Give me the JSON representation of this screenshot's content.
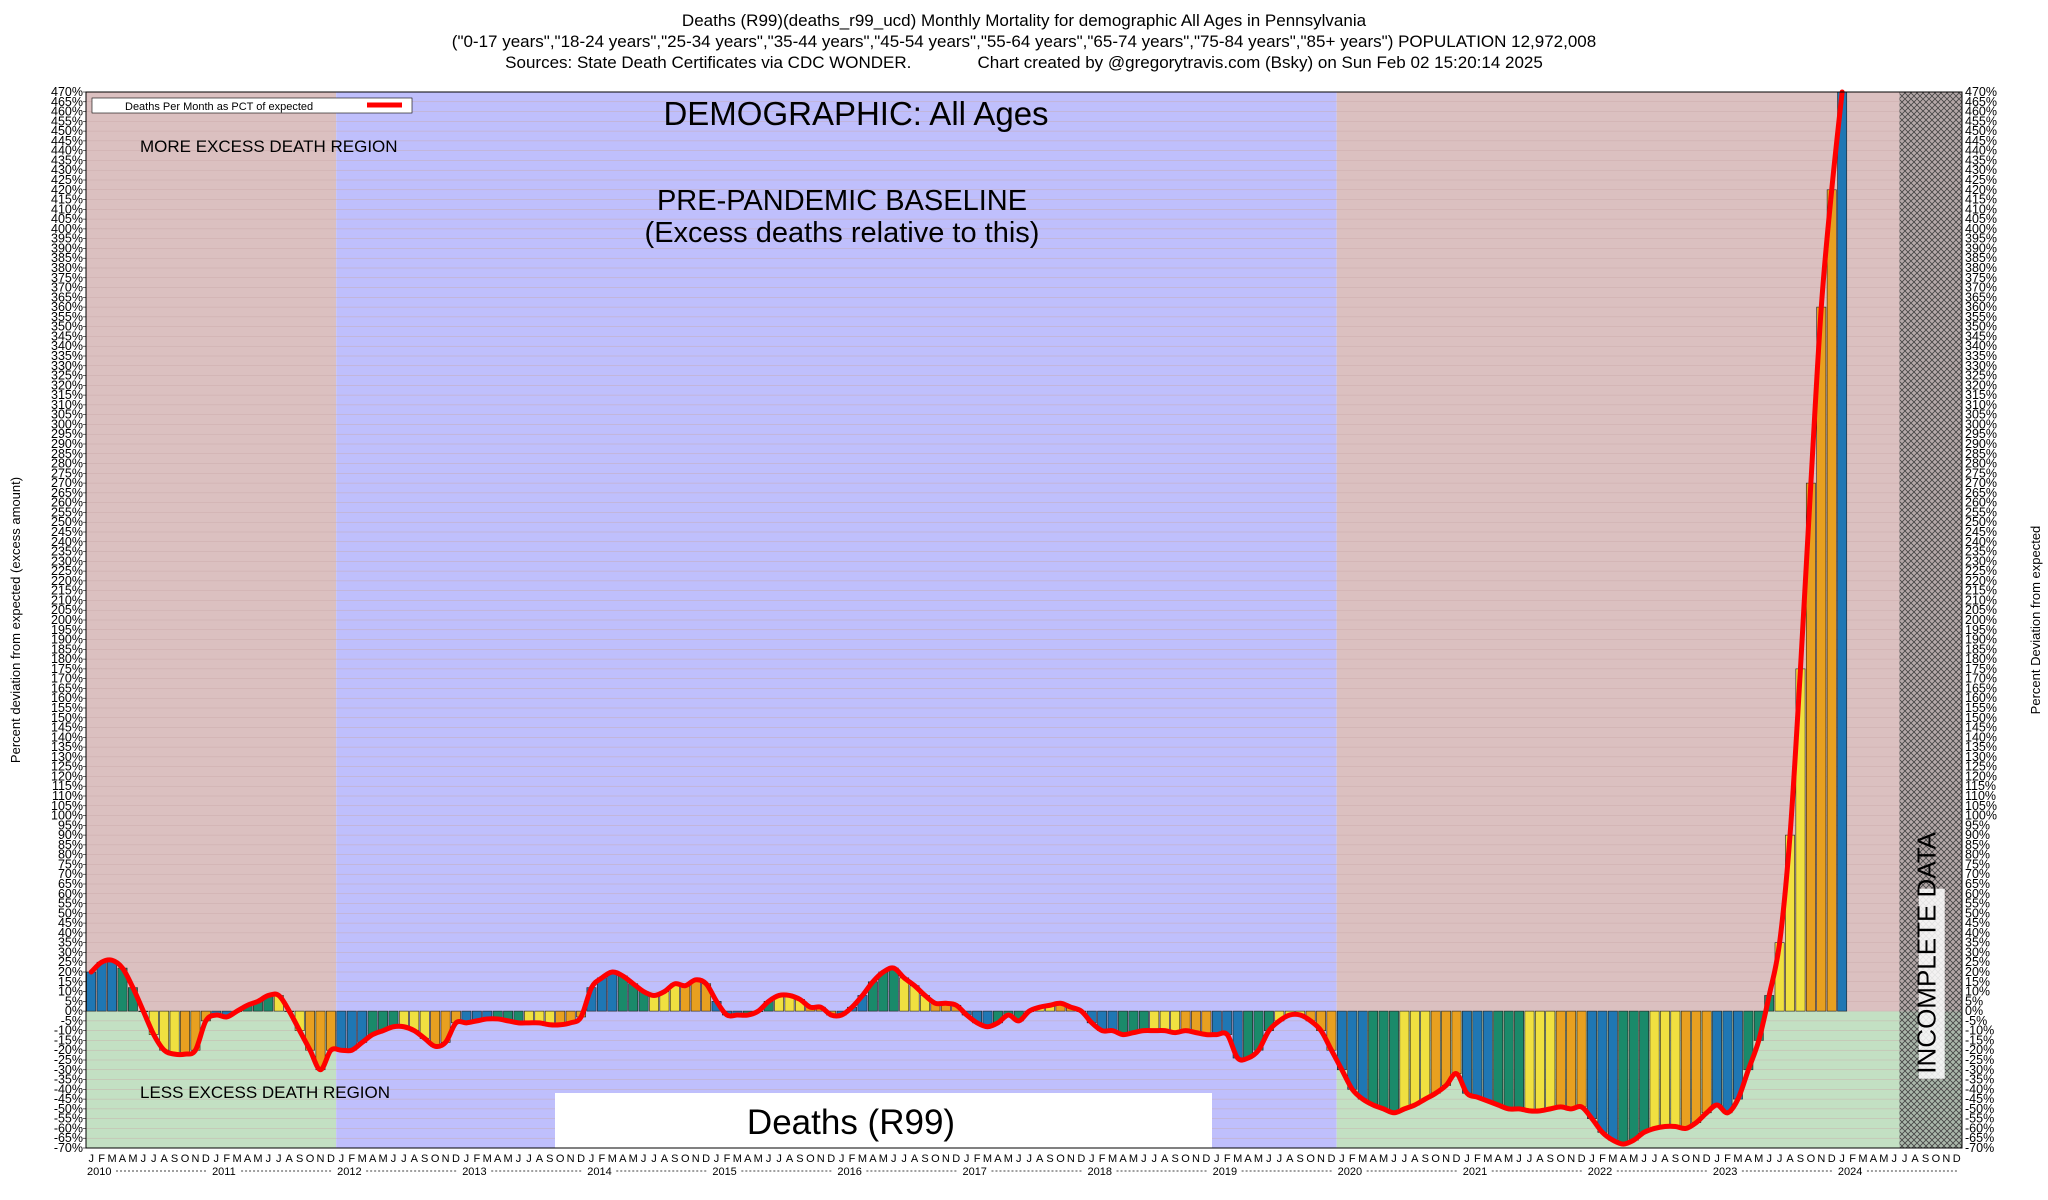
{
  "title": {
    "line1": "Deaths (R99)(deaths_r99_ucd) Monthly Mortality for demographic All Ages in Pennsylvania",
    "line2": "(\"0-17 years\",\"18-24 years\",\"25-34 years\",\"35-44 years\",\"45-54 years\",\"55-64 years\",\"65-74 years\",\"75-84 years\",\"85+ years\") POPULATION 12,972,008",
    "line3": "Sources: State Death Certificates via CDC WONDER.              Chart created by @gregorytravis.com (Bsky) on Sun Feb 02 15:20:14 2025"
  },
  "annotations": {
    "demographic": "DEMOGRAPHIC: All Ages",
    "baseline_1": "PRE-PANDEMIC BASELINE",
    "baseline_2": "(Excess deaths relative to this)",
    "more_excess": "MORE EXCESS DEATH REGION",
    "less_excess": "LESS EXCESS DEATH REGION",
    "cause_box": "Deaths (R99)",
    "incomplete": "INCOMPLETE DATA",
    "legend": "Deaths Per Month as PCT of expected"
  },
  "colors": {
    "red_region": "#dbc0c0",
    "blue_region": "#bfbffc",
    "green_region": "#c3e0c3",
    "line": "#ff0000",
    "bar_blue": "#1f77b4",
    "bar_green": "#1a8a6a",
    "bar_yellow": "#f0e040",
    "bar_orange": "#e8a020"
  },
  "chart_data": {
    "type": "bar",
    "ylabel": "Percent deviation from expected (excess amount)",
    "ylabel_right": "Percent Deviation from expected",
    "ylim": [
      -70,
      470
    ],
    "ytick_step": 5,
    "ytick_suffix": "%",
    "years": [
      "2010",
      "2011",
      "2012",
      "2013",
      "2014",
      "2015",
      "2016",
      "2017",
      "2018",
      "2019",
      "2020",
      "2021",
      "2022",
      "2023",
      "2024"
    ],
    "month_letters": [
      "J",
      "F",
      "M",
      "A",
      "M",
      "J",
      "J",
      "A",
      "S",
      "O",
      "N",
      "D"
    ],
    "baseline_years": [
      "2012",
      "2013",
      "2014",
      "2015",
      "2016",
      "2017",
      "2018",
      "2019"
    ],
    "incomplete_from": "2024-07",
    "grid": true,
    "series": [
      {
        "name": "Deaths Per Month as PCT of expected",
        "start": "2010-01",
        "values": [
          20,
          25,
          26,
          22,
          12,
          0,
          -12,
          -20,
          -22,
          -22,
          -20,
          -5,
          -2,
          -3,
          0,
          3,
          5,
          8,
          8,
          0,
          -10,
          -20,
          -30,
          -20,
          -20,
          -20,
          -16,
          -12,
          -10,
          -8,
          -8,
          -10,
          -14,
          -18,
          -16,
          -6,
          -6,
          -5,
          -4,
          -4,
          -5,
          -6,
          -6,
          -6,
          -7,
          -7,
          -6,
          -3,
          12,
          17,
          20,
          18,
          14,
          10,
          8,
          10,
          14,
          13,
          16,
          14,
          5,
          -2,
          -2,
          -2,
          0,
          5,
          8,
          8,
          6,
          2,
          2,
          -2,
          -2,
          2,
          8,
          15,
          20,
          22,
          17,
          13,
          8,
          4,
          4,
          3,
          -2,
          -6,
          -8,
          -6,
          -2,
          -5,
          0,
          2,
          3,
          4,
          2,
          0,
          -6,
          -10,
          -10,
          -12,
          -11,
          -10,
          -10,
          -10,
          -11,
          -10,
          -11,
          -12,
          -12,
          -12,
          -24,
          -24,
          -20,
          -10,
          -5,
          -2,
          -2,
          -5,
          -10,
          -20,
          -30,
          -40,
          -45,
          -48,
          -50,
          -52,
          -50,
          -48,
          -45,
          -42,
          -38,
          -32,
          -42,
          -44,
          -46,
          -48,
          -50,
          -50,
          -51,
          -51,
          -50,
          -49,
          -50,
          -49,
          -55,
          -62,
          -66,
          -68,
          -66,
          -62,
          -60,
          -59,
          -59,
          -60,
          -57,
          -52,
          -48,
          -52,
          -45,
          -30,
          -15,
          8,
          35,
          90,
          175,
          270,
          360,
          420,
          470
        ]
      }
    ]
  }
}
